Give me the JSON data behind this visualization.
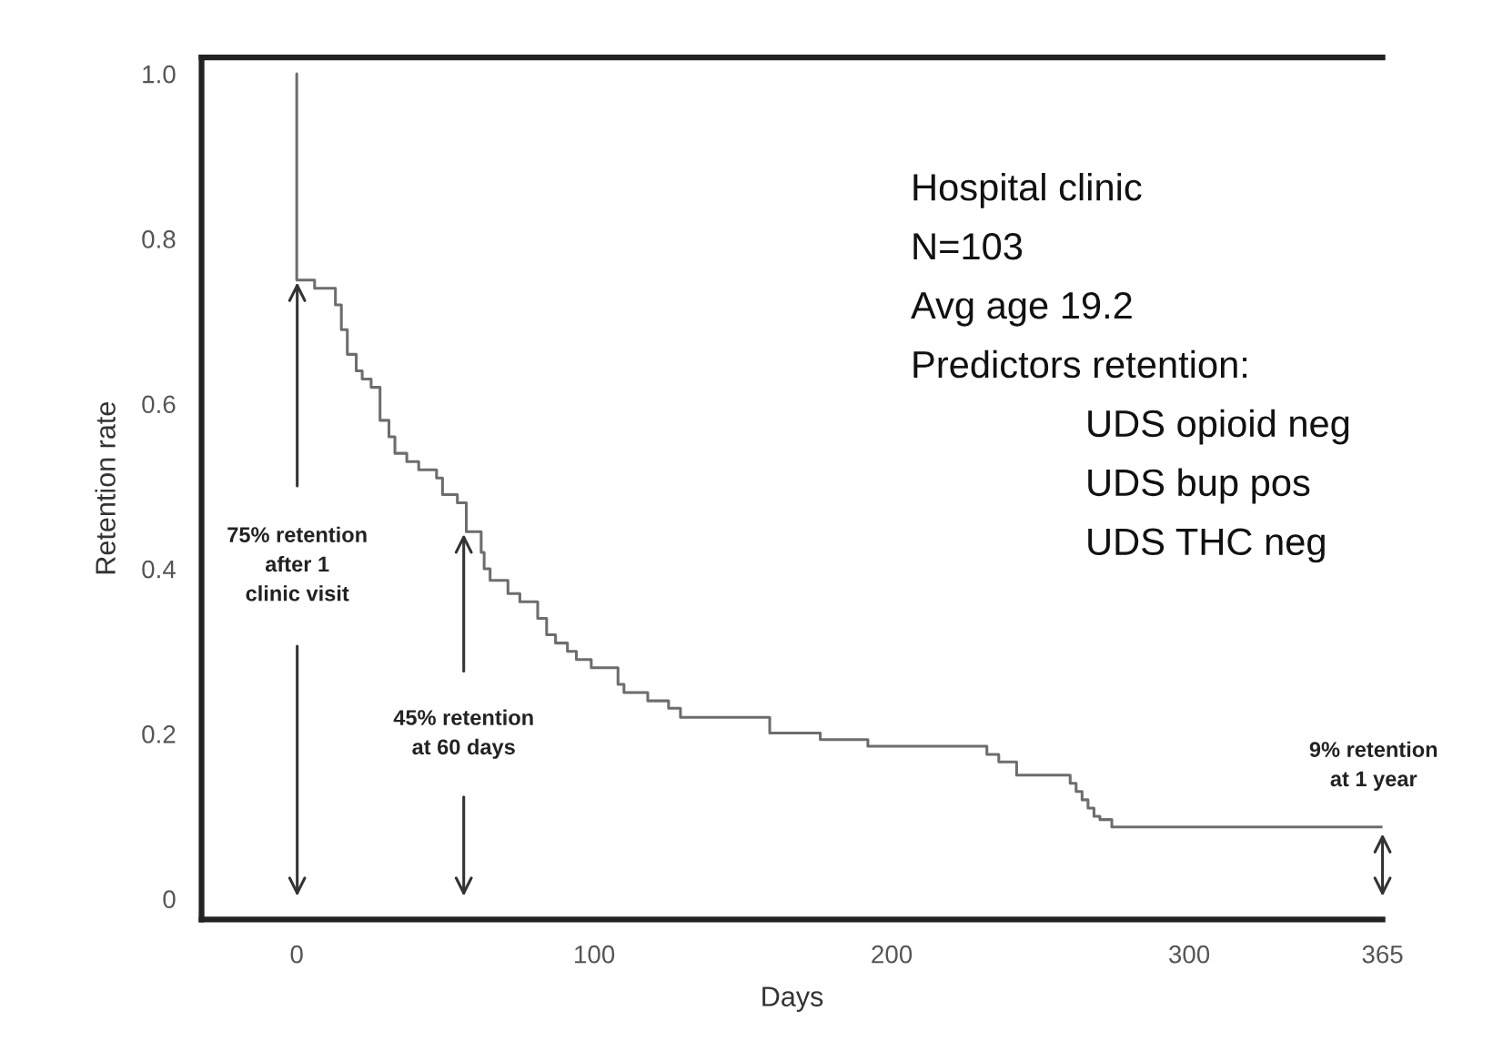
{
  "chart_data": {
    "type": "step",
    "xlabel": "Days",
    "ylabel": "Retention rate",
    "x": [
      0,
      0,
      6,
      13,
      15,
      17,
      20,
      22,
      25,
      28,
      31,
      33,
      37,
      41,
      47,
      49,
      54,
      57,
      62,
      63,
      65,
      71,
      75,
      81,
      84,
      87,
      91,
      94,
      99,
      108,
      110,
      118,
      125,
      129,
      159,
      176,
      192,
      232,
      236,
      242,
      260,
      262,
      264,
      266,
      268,
      270,
      274,
      332,
      365
    ],
    "series": [
      {
        "color": "#6d6d6d",
        "values": [
          1.0,
          0.75,
          0.74,
          0.72,
          0.69,
          0.66,
          0.64,
          0.63,
          0.62,
          0.58,
          0.56,
          0.54,
          0.53,
          0.52,
          0.51,
          0.49,
          0.48,
          0.445,
          0.42,
          0.4,
          0.386,
          0.37,
          0.36,
          0.34,
          0.32,
          0.31,
          0.3,
          0.29,
          0.28,
          0.26,
          0.25,
          0.24,
          0.231,
          0.22,
          0.201,
          0.193,
          0.185,
          0.175,
          0.166,
          0.15,
          0.14,
          0.13,
          0.12,
          0.11,
          0.1,
          0.096,
          0.087,
          0.087,
          0.087
        ]
      }
    ],
    "xlim": [
      -32,
      365
    ],
    "ylim": [
      -0.025,
      1.02
    ],
    "xticks": [
      0,
      100,
      200,
      300,
      365
    ],
    "yticks": [
      0,
      0.2,
      0.4,
      0.6,
      0.8,
      {
        "value": 1,
        "label": "1.0"
      }
    ],
    "grid": false,
    "line_style": "solid",
    "marker": "none",
    "annotations": [
      "75% retention\nafter 1\nclinic visit",
      "45% retention\nat 60 days",
      {
        "text": "9% retention\nat 1 year",
        "x": 365,
        "y": 0.087
      },
      "Hospital clinic",
      "N=103",
      "Avg age 19.2",
      "Predictors retention:",
      "UDS opioid neg",
      "UDS bup pos",
      "UDS THC neg"
    ]
  }
}
